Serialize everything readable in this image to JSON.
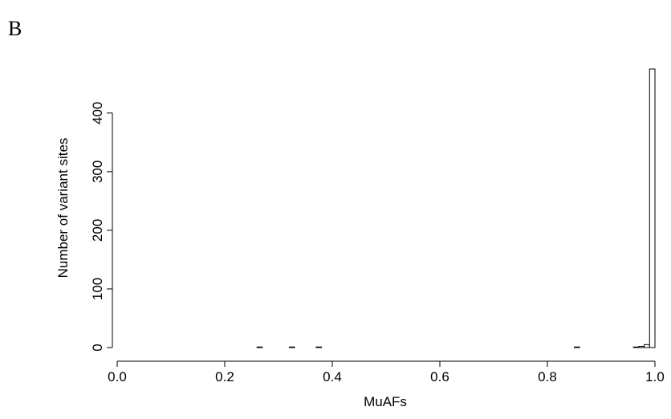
{
  "panel_label": "B",
  "chart_data": {
    "type": "histogram",
    "xlabel": "MuAFs",
    "ylabel": "Number of variant sites",
    "bins": [
      0.26,
      0.27,
      0.28,
      0.29,
      0.3,
      0.31,
      0.32,
      0.33,
      0.34,
      0.35,
      0.36,
      0.37,
      0.38,
      0.39,
      0.4,
      0.41,
      0.42,
      0.43,
      0.44,
      0.45,
      0.46,
      0.47,
      0.48,
      0.49,
      0.5,
      0.51,
      0.52,
      0.53,
      0.54,
      0.55,
      0.56,
      0.57,
      0.58,
      0.59,
      0.6,
      0.61,
      0.62,
      0.63,
      0.64,
      0.65,
      0.66,
      0.67,
      0.68,
      0.69,
      0.7,
      0.71,
      0.72,
      0.73,
      0.74,
      0.75,
      0.76,
      0.77,
      0.78,
      0.79,
      0.8,
      0.81,
      0.82,
      0.83,
      0.84,
      0.85,
      0.86,
      0.87,
      0.88,
      0.89,
      0.9,
      0.91,
      0.92,
      0.93,
      0.94,
      0.95,
      0.96,
      0.97,
      0.98,
      0.99,
      1.0
    ],
    "values": [
      1,
      0,
      0,
      0,
      0,
      0,
      1,
      0,
      0,
      0,
      0,
      1,
      0,
      0,
      0,
      0,
      0,
      0,
      0,
      0,
      0,
      0,
      0,
      0,
      0,
      0,
      0,
      0,
      0,
      0,
      0,
      0,
      0,
      0,
      0,
      0,
      0,
      0,
      0,
      0,
      0,
      0,
      0,
      0,
      0,
      0,
      0,
      0,
      0,
      0,
      0,
      0,
      0,
      0,
      0,
      0,
      0,
      0,
      0,
      1,
      0,
      0,
      0,
      0,
      0,
      0,
      0,
      0,
      0,
      0,
      1,
      2,
      5,
      475
    ],
    "color": "#ffffff",
    "xlim": [
      0,
      1
    ],
    "ylim": [
      0,
      475
    ],
    "xticks": [
      {
        "value": 0,
        "label": "0.0"
      },
      0.2,
      0.4,
      0.6,
      0.8,
      {
        "value": 1,
        "label": "1.0"
      }
    ],
    "yticks": [
      0,
      100,
      200,
      300,
      400
    ]
  }
}
